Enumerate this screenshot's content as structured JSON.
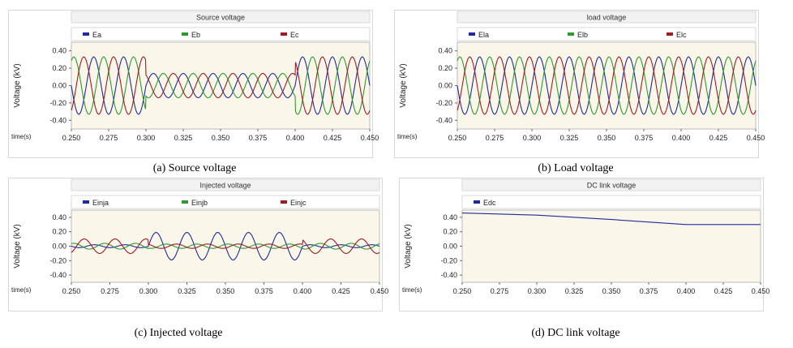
{
  "colors": {
    "series_a": "#1f2a9e",
    "series_b": "#2d9a2d",
    "series_c": "#a01c22",
    "plot_bg": "#faf7ea",
    "frame": "#d8d8d8"
  },
  "x_axis": {
    "label": "time(s)",
    "ticks": [
      "0.250",
      "0.275",
      "0.300",
      "0.325",
      "0.350",
      "0.375",
      "0.400",
      "0.425",
      "0.450"
    ]
  },
  "y_axis": {
    "label": "Voltage (kV)",
    "ticks": [
      "0.40",
      "0.20",
      "0.00",
      "-0.20",
      "-0.40"
    ]
  },
  "captions": [
    "(a) Source voltage",
    "(b) Load voltage",
    "(c) Injected voltage",
    "(d) DC link voltage"
  ],
  "chart_data": [
    {
      "type": "line",
      "title": "Source voltage",
      "xlabel": "time(s)",
      "ylabel": "Voltage (kV)",
      "xlim": [
        0.25,
        0.45
      ],
      "ylim": [
        -0.5,
        0.5
      ],
      "legend_position": "top",
      "series": [
        {
          "name": "Ea",
          "amplitude_kv": 0.33,
          "sag_amplitude_kv": 0.14,
          "sag_start_s": 0.3,
          "sag_end_s": 0.4,
          "frequency_hz": 50,
          "phase_deg": 0
        },
        {
          "name": "Eb",
          "amplitude_kv": 0.33,
          "sag_amplitude_kv": 0.14,
          "sag_start_s": 0.3,
          "sag_end_s": 0.4,
          "frequency_hz": 50,
          "phase_deg": -120
        },
        {
          "name": "Ec",
          "amplitude_kv": 0.33,
          "sag_amplitude_kv": 0.14,
          "sag_start_s": 0.3,
          "sag_end_s": 0.4,
          "frequency_hz": 50,
          "phase_deg": 120
        }
      ]
    },
    {
      "type": "line",
      "title": "load voltage",
      "xlabel": "time(s)",
      "ylabel": "Voltage (kV)",
      "xlim": [
        0.25,
        0.45
      ],
      "ylim": [
        -0.5,
        0.5
      ],
      "legend_position": "top",
      "series": [
        {
          "name": "Ela",
          "amplitude_kv": 0.33,
          "frequency_hz": 50,
          "phase_deg": 0
        },
        {
          "name": "Elb",
          "amplitude_kv": 0.33,
          "frequency_hz": 50,
          "phase_deg": -120
        },
        {
          "name": "Elc",
          "amplitude_kv": 0.33,
          "frequency_hz": 50,
          "phase_deg": 120
        }
      ]
    },
    {
      "type": "line",
      "title": "Injected voltage",
      "xlabel": "time(s)",
      "ylabel": "Voltage (kV)",
      "xlim": [
        0.25,
        0.45
      ],
      "ylim": [
        -0.5,
        0.5
      ],
      "legend_position": "top",
      "series": [
        {
          "name": "Einja",
          "amplitude_kv": 0.02,
          "sag_amplitude_kv": 0.19,
          "sag_start_s": 0.3,
          "sag_end_s": 0.4,
          "frequency_hz": 50,
          "phase_deg": 0
        },
        {
          "name": "Einjb",
          "amplitude_kv": 0.04,
          "sag_amplitude_kv": 0.03,
          "sag_start_s": 0.3,
          "sag_end_s": 0.4,
          "frequency_hz": 50,
          "phase_deg": -120
        },
        {
          "name": "Einjc",
          "amplitude_kv": 0.1,
          "sag_amplitude_kv": 0.03,
          "sag_start_s": 0.3,
          "sag_end_s": 0.4,
          "frequency_hz": 50,
          "phase_deg": 120
        }
      ]
    },
    {
      "type": "line",
      "title": "DC link voltage",
      "xlabel": "time(s)",
      "ylabel": "Voltage (kV)",
      "xlim": [
        0.25,
        0.45
      ],
      "ylim": [
        -0.5,
        0.5
      ],
      "legend_position": "top",
      "series": [
        {
          "name": "Edc",
          "points": [
            [
              0.25,
              0.46
            ],
            [
              0.3,
              0.43
            ],
            [
              0.35,
              0.37
            ],
            [
              0.4,
              0.3
            ],
            [
              0.45,
              0.3
            ]
          ]
        }
      ]
    }
  ]
}
